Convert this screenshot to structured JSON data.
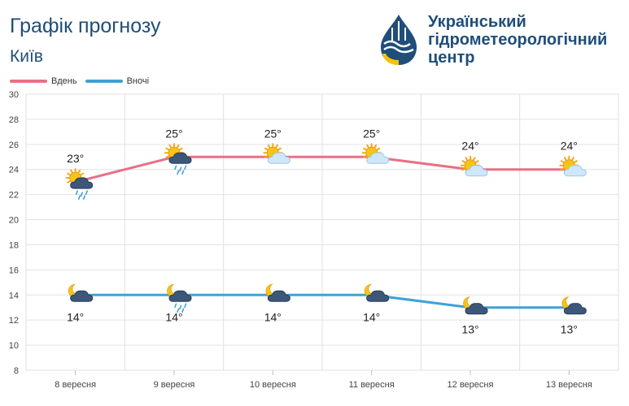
{
  "header": {
    "title": "Графік прогнозу",
    "subtitle": "Київ"
  },
  "logo": {
    "line1": "Український",
    "line2": "гідрометеорологічний",
    "line3": "центр"
  },
  "colors": {
    "day": "#e87087",
    "night": "#3ea2d3",
    "grid": "#e2e2e2",
    "brand": "#1f4e79"
  },
  "chart_data": {
    "type": "line",
    "categories": [
      "8 вересня",
      "9 вересня",
      "10 вересня",
      "11 вересня",
      "12 вересня",
      "13 вересня"
    ],
    "series": [
      {
        "name": "Вдень",
        "values": [
          23,
          25,
          25,
          25,
          24,
          24
        ],
        "labels": [
          "23°",
          "25°",
          "25°",
          "25°",
          "24°",
          "24°"
        ],
        "icons": [
          "sun-cloud-rain-icon",
          "sun-cloud-rain-icon",
          "sun-cloud-icon",
          "sun-cloud-icon",
          "sun-cloud-icon",
          "sun-cloud-icon"
        ]
      },
      {
        "name": "Вночі",
        "values": [
          14,
          14,
          14,
          14,
          13,
          13
        ],
        "labels": [
          "14°",
          "14°",
          "14°",
          "14°",
          "13°",
          "13°"
        ],
        "icons": [
          "moon-cloud-icon",
          "moon-cloud-rain-icon",
          "moon-cloud-icon",
          "moon-cloud-icon",
          "moon-cloud-icon",
          "moon-cloud-icon"
        ]
      }
    ],
    "ylim": [
      8,
      30
    ],
    "yticks": [
      "8",
      "10",
      "12",
      "14",
      "16",
      "18",
      "20",
      "22",
      "24",
      "26",
      "28",
      "30"
    ],
    "grid": true,
    "legend_position": "top-left"
  }
}
